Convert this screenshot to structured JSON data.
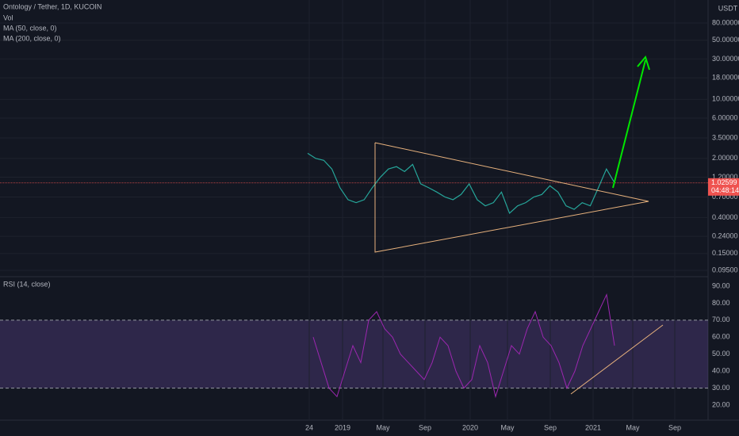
{
  "header": {
    "title": "Ontology / Tether, 1D, KUCOIN",
    "indicators": [
      "Vol",
      "MA (50, close, 0)",
      "MA (200, close, 0)"
    ]
  },
  "price_axis": {
    "unit": "USDT",
    "log": true,
    "ylim": [
      0.09,
      150
    ],
    "yticks": [
      {
        "value": 80,
        "label": "80.00000"
      },
      {
        "value": 50,
        "label": "50.00000"
      },
      {
        "value": 30,
        "label": "30.00000"
      },
      {
        "value": 18,
        "label": "18.00000"
      },
      {
        "value": 10,
        "label": "10.00000"
      },
      {
        "value": 6,
        "label": "6.00000"
      },
      {
        "value": 3.5,
        "label": "3.50000"
      },
      {
        "value": 2,
        "label": "2.00000"
      },
      {
        "value": 1.2,
        "label": "1.20000"
      },
      {
        "value": 0.7,
        "label": "0.70000"
      },
      {
        "value": 0.4,
        "label": "0.40000"
      },
      {
        "value": 0.24,
        "label": "0.24000"
      },
      {
        "value": 0.15,
        "label": "0.15000"
      },
      {
        "value": 0.095,
        "label": "0.09500"
      }
    ],
    "last_price": {
      "value": 1.02599,
      "label": "1.02599"
    },
    "countdown": "04:48:14"
  },
  "price_series": {
    "color": "#26a69a",
    "values": [
      2.3,
      2.0,
      1.9,
      1.5,
      0.9,
      0.65,
      0.6,
      0.65,
      0.9,
      1.2,
      1.5,
      1.6,
      1.4,
      1.7,
      1.0,
      0.9,
      0.8,
      0.7,
      0.65,
      0.75,
      1.0,
      0.65,
      0.55,
      0.6,
      0.8,
      0.45,
      0.55,
      0.6,
      0.7,
      0.75,
      0.95,
      0.8,
      0.55,
      0.5,
      0.6,
      0.55,
      0.9,
      1.5,
      1.03
    ]
  },
  "rsi": {
    "title": "RSI (14, close)",
    "color": "#9c27b0",
    "ylim": [
      15,
      95
    ],
    "yticks": [
      {
        "value": 90,
        "label": "90.00"
      },
      {
        "value": 80,
        "label": "80.00"
      },
      {
        "value": 70,
        "label": "70.00"
      },
      {
        "value": 60,
        "label": "60.00"
      },
      {
        "value": 50,
        "label": "50.00"
      },
      {
        "value": 40,
        "label": "40.00"
      },
      {
        "value": 30,
        "label": "30.00"
      },
      {
        "value": 20,
        "label": "20.00"
      }
    ],
    "band": [
      30,
      70
    ],
    "values": [
      60,
      45,
      30,
      25,
      40,
      55,
      45,
      70,
      75,
      65,
      60,
      50,
      45,
      40,
      35,
      45,
      60,
      55,
      40,
      30,
      35,
      55,
      45,
      25,
      40,
      55,
      50,
      65,
      75,
      60,
      55,
      45,
      30,
      40,
      55,
      65,
      75,
      85,
      55
    ]
  },
  "time_axis": {
    "labels": [
      "24",
      "2019",
      "May",
      "Sep",
      "2020",
      "May",
      "Sep",
      "2021",
      "May",
      "Sep"
    ]
  }
}
